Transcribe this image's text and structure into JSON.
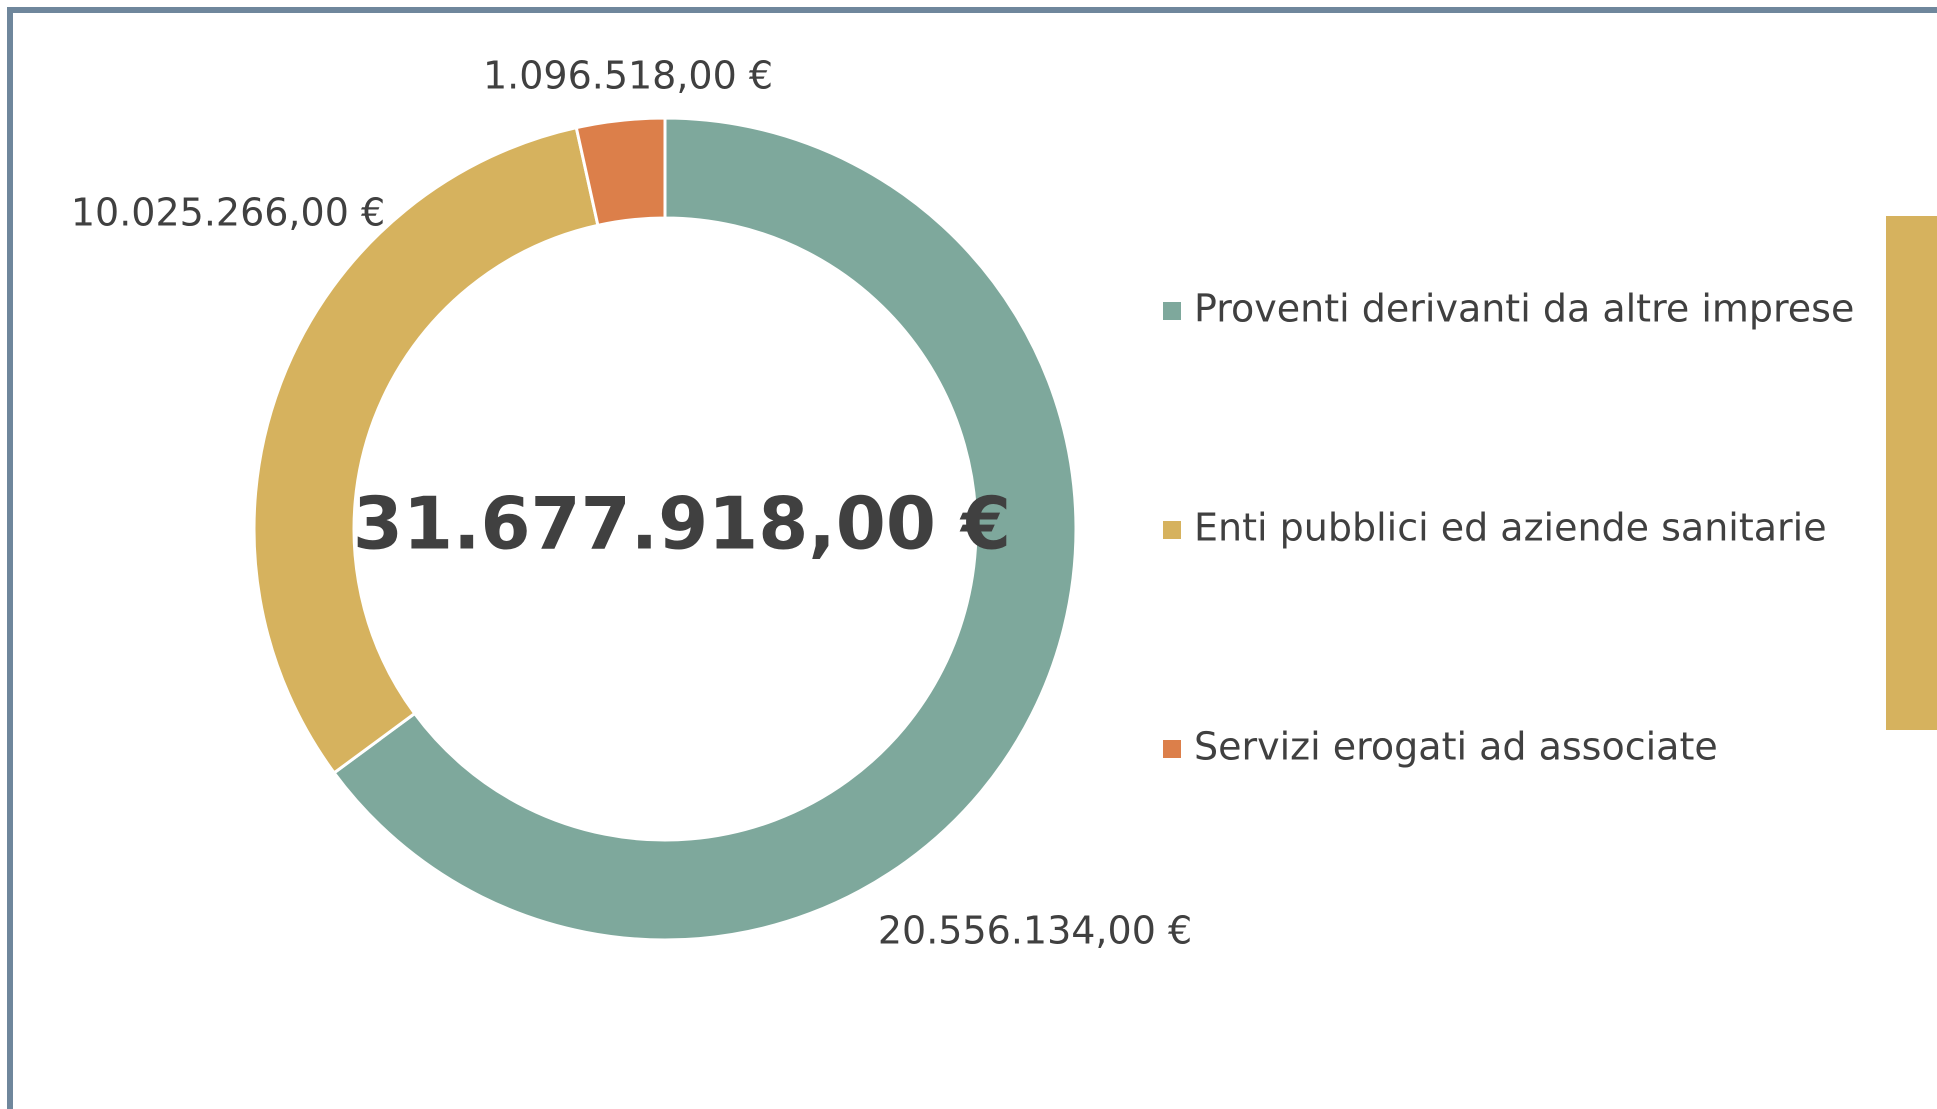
{
  "chart_data": {
    "type": "donut",
    "center_label": "31.677.918,00 €",
    "series": [
      {
        "name": "Proventi derivanti da altre imprese",
        "color": "#7ea89c",
        "value": 20556134,
        "value_label": "20.556.134,00 €"
      },
      {
        "name": "Enti pubblici ed aziende sanitarie",
        "color": "#d6b25e",
        "value": 10025266,
        "value_label": "10.025.266,00 €"
      },
      {
        "name": "Servizi erogati ad associate",
        "color": "#dc7f4a",
        "value": 1096518,
        "value_label": "1.096.518,00 €"
      }
    ],
    "legend": "right"
  }
}
